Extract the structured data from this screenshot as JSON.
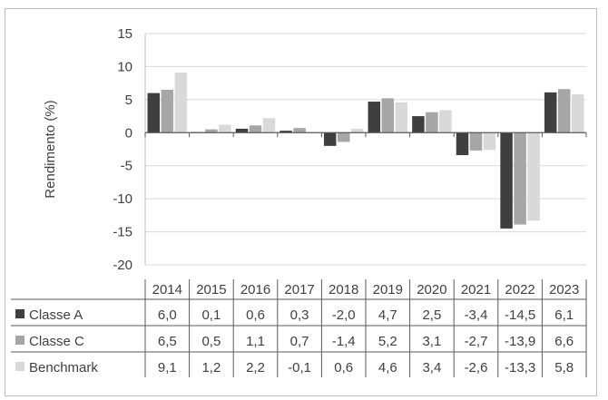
{
  "chart_data": {
    "type": "bar",
    "ylabel": "Rendimento (%)",
    "ylim": [
      -20,
      15
    ],
    "yticks": [
      15,
      10,
      5,
      0,
      -5,
      -10,
      -15,
      -20
    ],
    "grid": true,
    "categories": [
      "2014",
      "2015",
      "2016",
      "2017",
      "2018",
      "2019",
      "2020",
      "2021",
      "2022",
      "2023"
    ],
    "series": [
      {
        "name": "Classe A",
        "color": "#3f3f3f",
        "values": [
          6.0,
          0.1,
          0.6,
          0.3,
          -2.0,
          4.7,
          2.5,
          -3.4,
          -14.5,
          6.1
        ],
        "labels": [
          "6,0",
          "0,1",
          "0,6",
          "0,3",
          "-2,0",
          "4,7",
          "2,5",
          "-3,4",
          "-14,5",
          "6,1"
        ]
      },
      {
        "name": "Classe C",
        "color": "#a6a6a6",
        "values": [
          6.5,
          0.5,
          1.1,
          0.7,
          -1.4,
          5.2,
          3.1,
          -2.7,
          -13.9,
          6.6
        ],
        "labels": [
          "6,5",
          "0,5",
          "1,1",
          "0,7",
          "-1,4",
          "5,2",
          "3,1",
          "-2,7",
          "-13,9",
          "6,6"
        ]
      },
      {
        "name": "Benchmark",
        "color": "#d9d9d9",
        "values": [
          9.1,
          1.2,
          2.2,
          -0.1,
          0.6,
          4.6,
          3.4,
          -2.6,
          -13.3,
          5.8
        ],
        "labels": [
          "9,1",
          "1,2",
          "2,2",
          "-0,1",
          "0,6",
          "4,6",
          "3,4",
          "-2,6",
          "-13,3",
          "5,8"
        ]
      }
    ],
    "legend": "data-table"
  }
}
